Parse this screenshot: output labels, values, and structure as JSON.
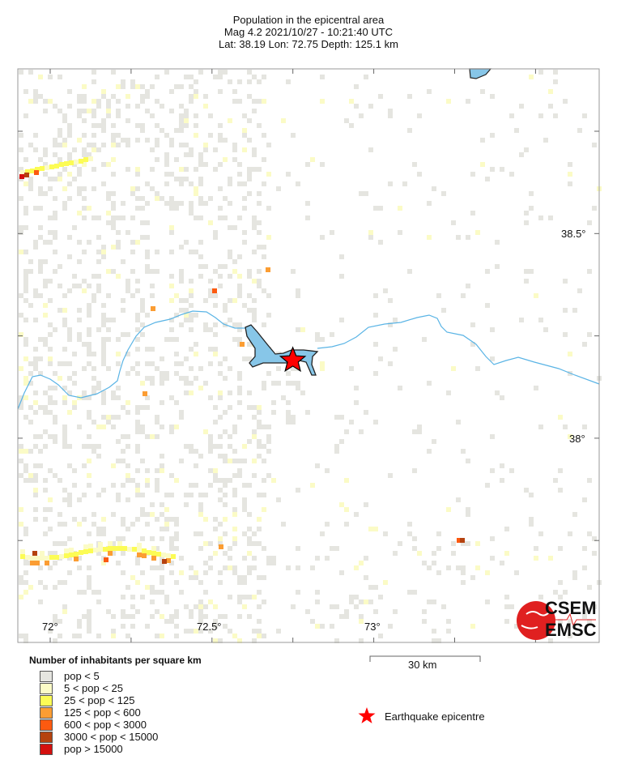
{
  "header": {
    "title": "Population in the epicentral area",
    "line2": "Mag 4.2  2021/10/27 - 10:21:40 UTC",
    "line3": "Lat: 38.19    Lon:  72.75     Depth: 125.1 km"
  },
  "map": {
    "lon_labels": [
      "72°",
      "72.5°",
      "73°"
    ],
    "lat_labels": [
      "38.5°",
      "38°"
    ],
    "epicentre": {
      "lat": 38.19,
      "lon": 72.75
    },
    "water_color": "#87c6e8",
    "river_color": "#5ab4e5",
    "epicentre_color": "#ff0000",
    "scale_label": "30 km"
  },
  "legend": {
    "title": "Number of inhabitants per square km",
    "items": [
      {
        "label": "pop < 5",
        "color": "#e5e5e0"
      },
      {
        "label": "5 < pop < 25",
        "color": "#fbfbc6"
      },
      {
        "label": "25 < pop < 125",
        "color": "#fcfc55"
      },
      {
        "label": "125 < pop < 600",
        "color": "#fb9d33"
      },
      {
        "label": "600 < pop < 3000",
        "color": "#fc5a10"
      },
      {
        "label": "3000 < pop < 15000",
        "color": "#b5420f"
      },
      {
        "label": "pop > 15000",
        "color": "#d4100e"
      }
    ],
    "epicentre_label": "Earthquake epicentre"
  },
  "logo": {
    "text_top": "CSEM",
    "text_bottom": "EMSC",
    "color": "#e02020"
  }
}
